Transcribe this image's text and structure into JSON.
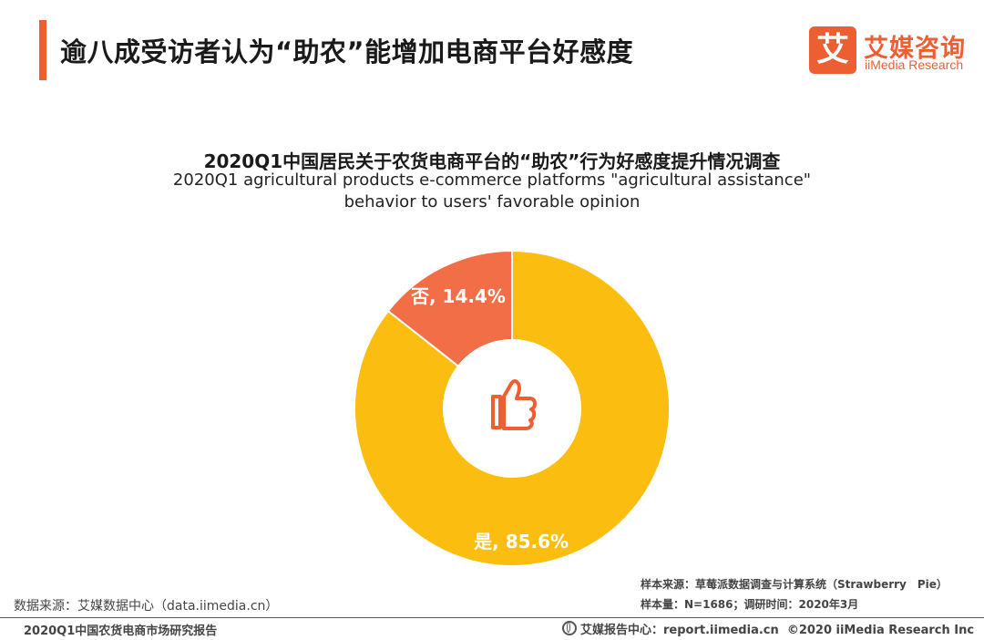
{
  "header": {
    "title": "逾八成受访者认为“助农”能增加电商平台好感度",
    "accent_color": "#ee5e33"
  },
  "logo": {
    "mark": "艾",
    "name_cn": "艾媒咨询",
    "name_en": "iiMedia Research"
  },
  "chart_header": {
    "title_cn": "2020Q1中国居民关于农货电商平台的“助农”行为好感度提升情况调查",
    "title_en_line1": "2020Q1 agricultural products e-commerce platforms \"agricultural assistance\"",
    "title_en_line2": "behavior to users' favorable opinion"
  },
  "chart_data": {
    "type": "pie",
    "variant": "donut",
    "center_icon": "thumbs-up-icon",
    "slices": [
      {
        "label": "是",
        "value": 85.6,
        "display": "是, 85.6%",
        "color": "#fbbd10"
      },
      {
        "label": "否",
        "value": 14.4,
        "display": "否, 14.4%",
        "color": "#f26e46"
      }
    ]
  },
  "notes": {
    "sample_source": "样本来源：草莓派数据调查与计算系统（Strawberry　Pie）",
    "sample_info": "样本量：N=1686；调研时间：2020年3月",
    "data_source": "数据来源：艾媒数据中心（data.iimedia.cn）"
  },
  "footer": {
    "report_name": "2020Q1中国农货电商市场研究报告",
    "report_center": "艾媒报告中心：report.iimedia.cn",
    "copyright": "©2020  iiMedia Research  Inc"
  }
}
